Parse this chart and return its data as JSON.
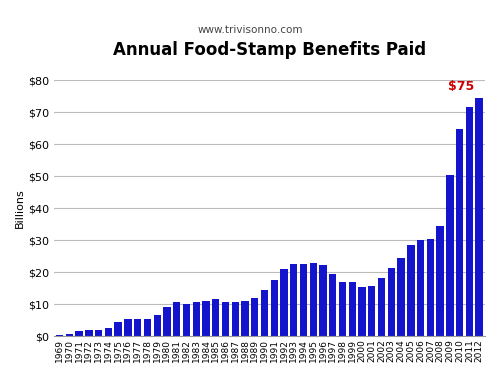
{
  "title": "Annual Food-Stamp Benefits Paid",
  "subtitle": "www.trivisonno.com",
  "ylabel": "Billions",
  "bar_color": "#1414CC",
  "annotation_color": "#CC0000",
  "annotation_text": "$75",
  "background_color": "#FFFFFF",
  "grid_color": "#BBBBBB",
  "ylim": [
    0,
    80
  ],
  "yticks": [
    0,
    10,
    20,
    30,
    40,
    50,
    60,
    70,
    80
  ],
  "years": [
    1969,
    1970,
    1971,
    1972,
    1973,
    1974,
    1975,
    1976,
    1977,
    1978,
    1979,
    1980,
    1981,
    1982,
    1983,
    1984,
    1985,
    1986,
    1987,
    1988,
    1989,
    1990,
    1991,
    1992,
    1993,
    1994,
    1995,
    1996,
    1997,
    1998,
    1999,
    2000,
    2001,
    2002,
    2003,
    2004,
    2005,
    2006,
    2007,
    2008,
    2009,
    2010,
    2011,
    2012
  ],
  "values": [
    0.25,
    0.55,
    1.5,
    1.8,
    2.1,
    2.7,
    4.4,
    5.3,
    5.4,
    5.5,
    6.5,
    9.1,
    10.6,
    10.2,
    10.6,
    11.1,
    11.7,
    10.6,
    10.6,
    11.1,
    12.0,
    14.3,
    17.7,
    20.9,
    22.5,
    22.7,
    22.8,
    22.4,
    19.5,
    16.9,
    17.1,
    15.5,
    15.7,
    18.2,
    21.4,
    24.6,
    28.6,
    30.2,
    30.4,
    34.6,
    50.4,
    64.7,
    71.8,
    74.6
  ],
  "figwidth": 5.0,
  "figheight": 3.77,
  "dpi": 100
}
